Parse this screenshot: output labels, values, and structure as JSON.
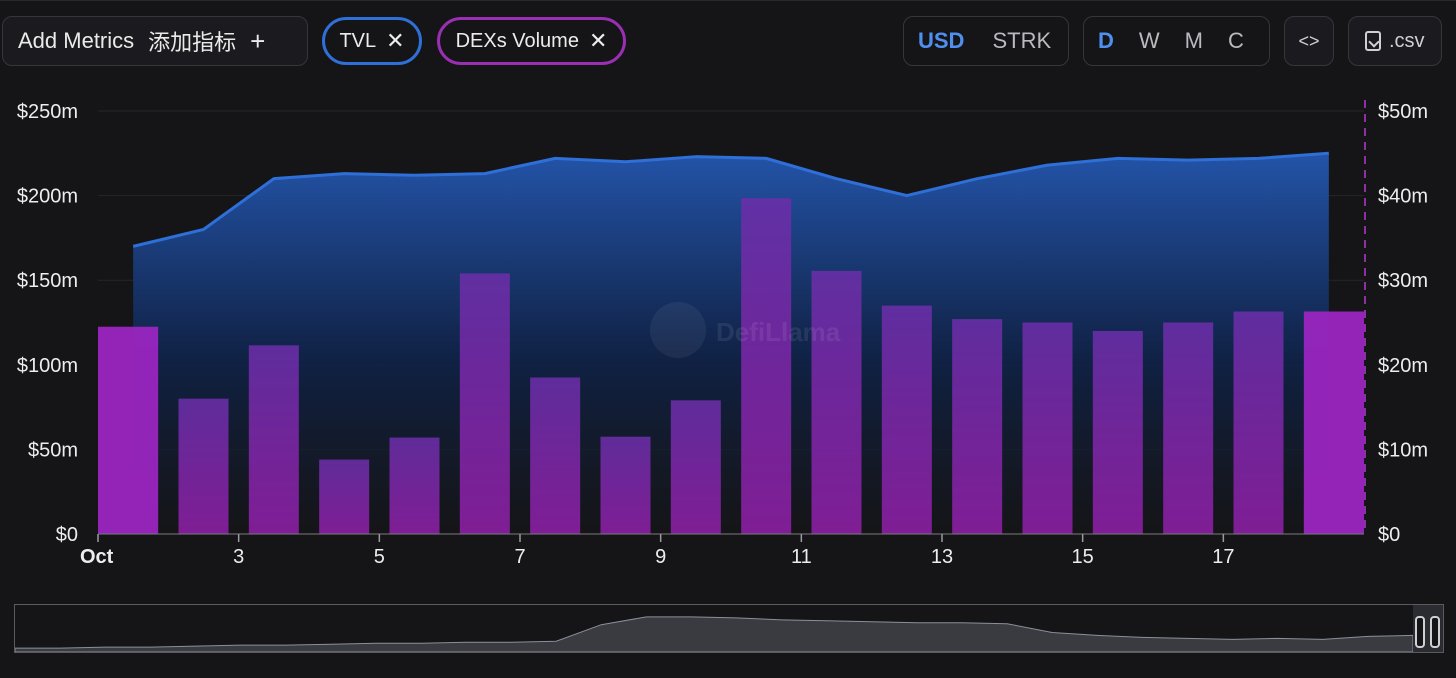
{
  "toolbar": {
    "add_metrics_label": "Add Metrics",
    "add_metrics_cn": "添加指标",
    "add_plus": "+",
    "metrics": [
      {
        "label": "TVL",
        "remove": "✕",
        "color": "#2f6fd8"
      },
      {
        "label": "DEXs Volume",
        "remove": "✕",
        "color": "#9b2fb4"
      }
    ],
    "currency": [
      "USD",
      "STRK"
    ],
    "currency_active": "USD",
    "periods": [
      "D",
      "W",
      "M",
      "C"
    ],
    "period_active": "D",
    "embed_label": "<>",
    "csv_label": ".csv",
    "csv_icon": "download-file-icon"
  },
  "chart_data": {
    "type": "bar+area",
    "x_ticks": [
      "Oct",
      "3",
      "5",
      "7",
      "9",
      "11",
      "13",
      "15",
      "17"
    ],
    "x": [
      "Oct 1",
      "Oct 2",
      "Oct 3",
      "Oct 4",
      "Oct 5",
      "Oct 6",
      "Oct 7",
      "Oct 8",
      "Oct 9",
      "Oct 10",
      "Oct 11",
      "Oct 12",
      "Oct 13",
      "Oct 14",
      "Oct 15",
      "Oct 16",
      "Oct 17",
      "Oct 18"
    ],
    "left_axis": {
      "ticks": [
        "$0",
        "$50m",
        "$100m",
        "$150m",
        "$200m",
        "$250m"
      ],
      "ylim": [
        0,
        250
      ]
    },
    "right_axis": {
      "ticks": [
        "$0",
        "$10m",
        "$20m",
        "$30m",
        "$40m",
        "$50m"
      ],
      "ylim": [
        0,
        50
      ]
    },
    "series": [
      {
        "name": "TVL",
        "type": "area",
        "axis": "left",
        "color": "#2f6fd8",
        "values": [
          170,
          180,
          210,
          213,
          212,
          213,
          222,
          220,
          223,
          222,
          210,
          200,
          210,
          218,
          222,
          221,
          222,
          225
        ]
      },
      {
        "name": "DEXs Volume",
        "type": "bar",
        "axis": "right",
        "color": "#8a2fb0",
        "values": [
          24.5,
          16,
          22.3,
          8.8,
          11.4,
          30.8,
          18.5,
          11.5,
          15.8,
          39.7,
          31.1,
          27,
          25.4,
          25,
          24,
          25,
          26.3,
          26.3
        ]
      }
    ],
    "grid": true
  },
  "watermark": "DefiLlama",
  "navigator": {
    "values": [
      4,
      4,
      5,
      5,
      6,
      7,
      7,
      8,
      9,
      9,
      10,
      10,
      11,
      28,
      36,
      36,
      35,
      33,
      32,
      31,
      30,
      30,
      29,
      20,
      17,
      15,
      14,
      13,
      14,
      13,
      16,
      17
    ]
  }
}
